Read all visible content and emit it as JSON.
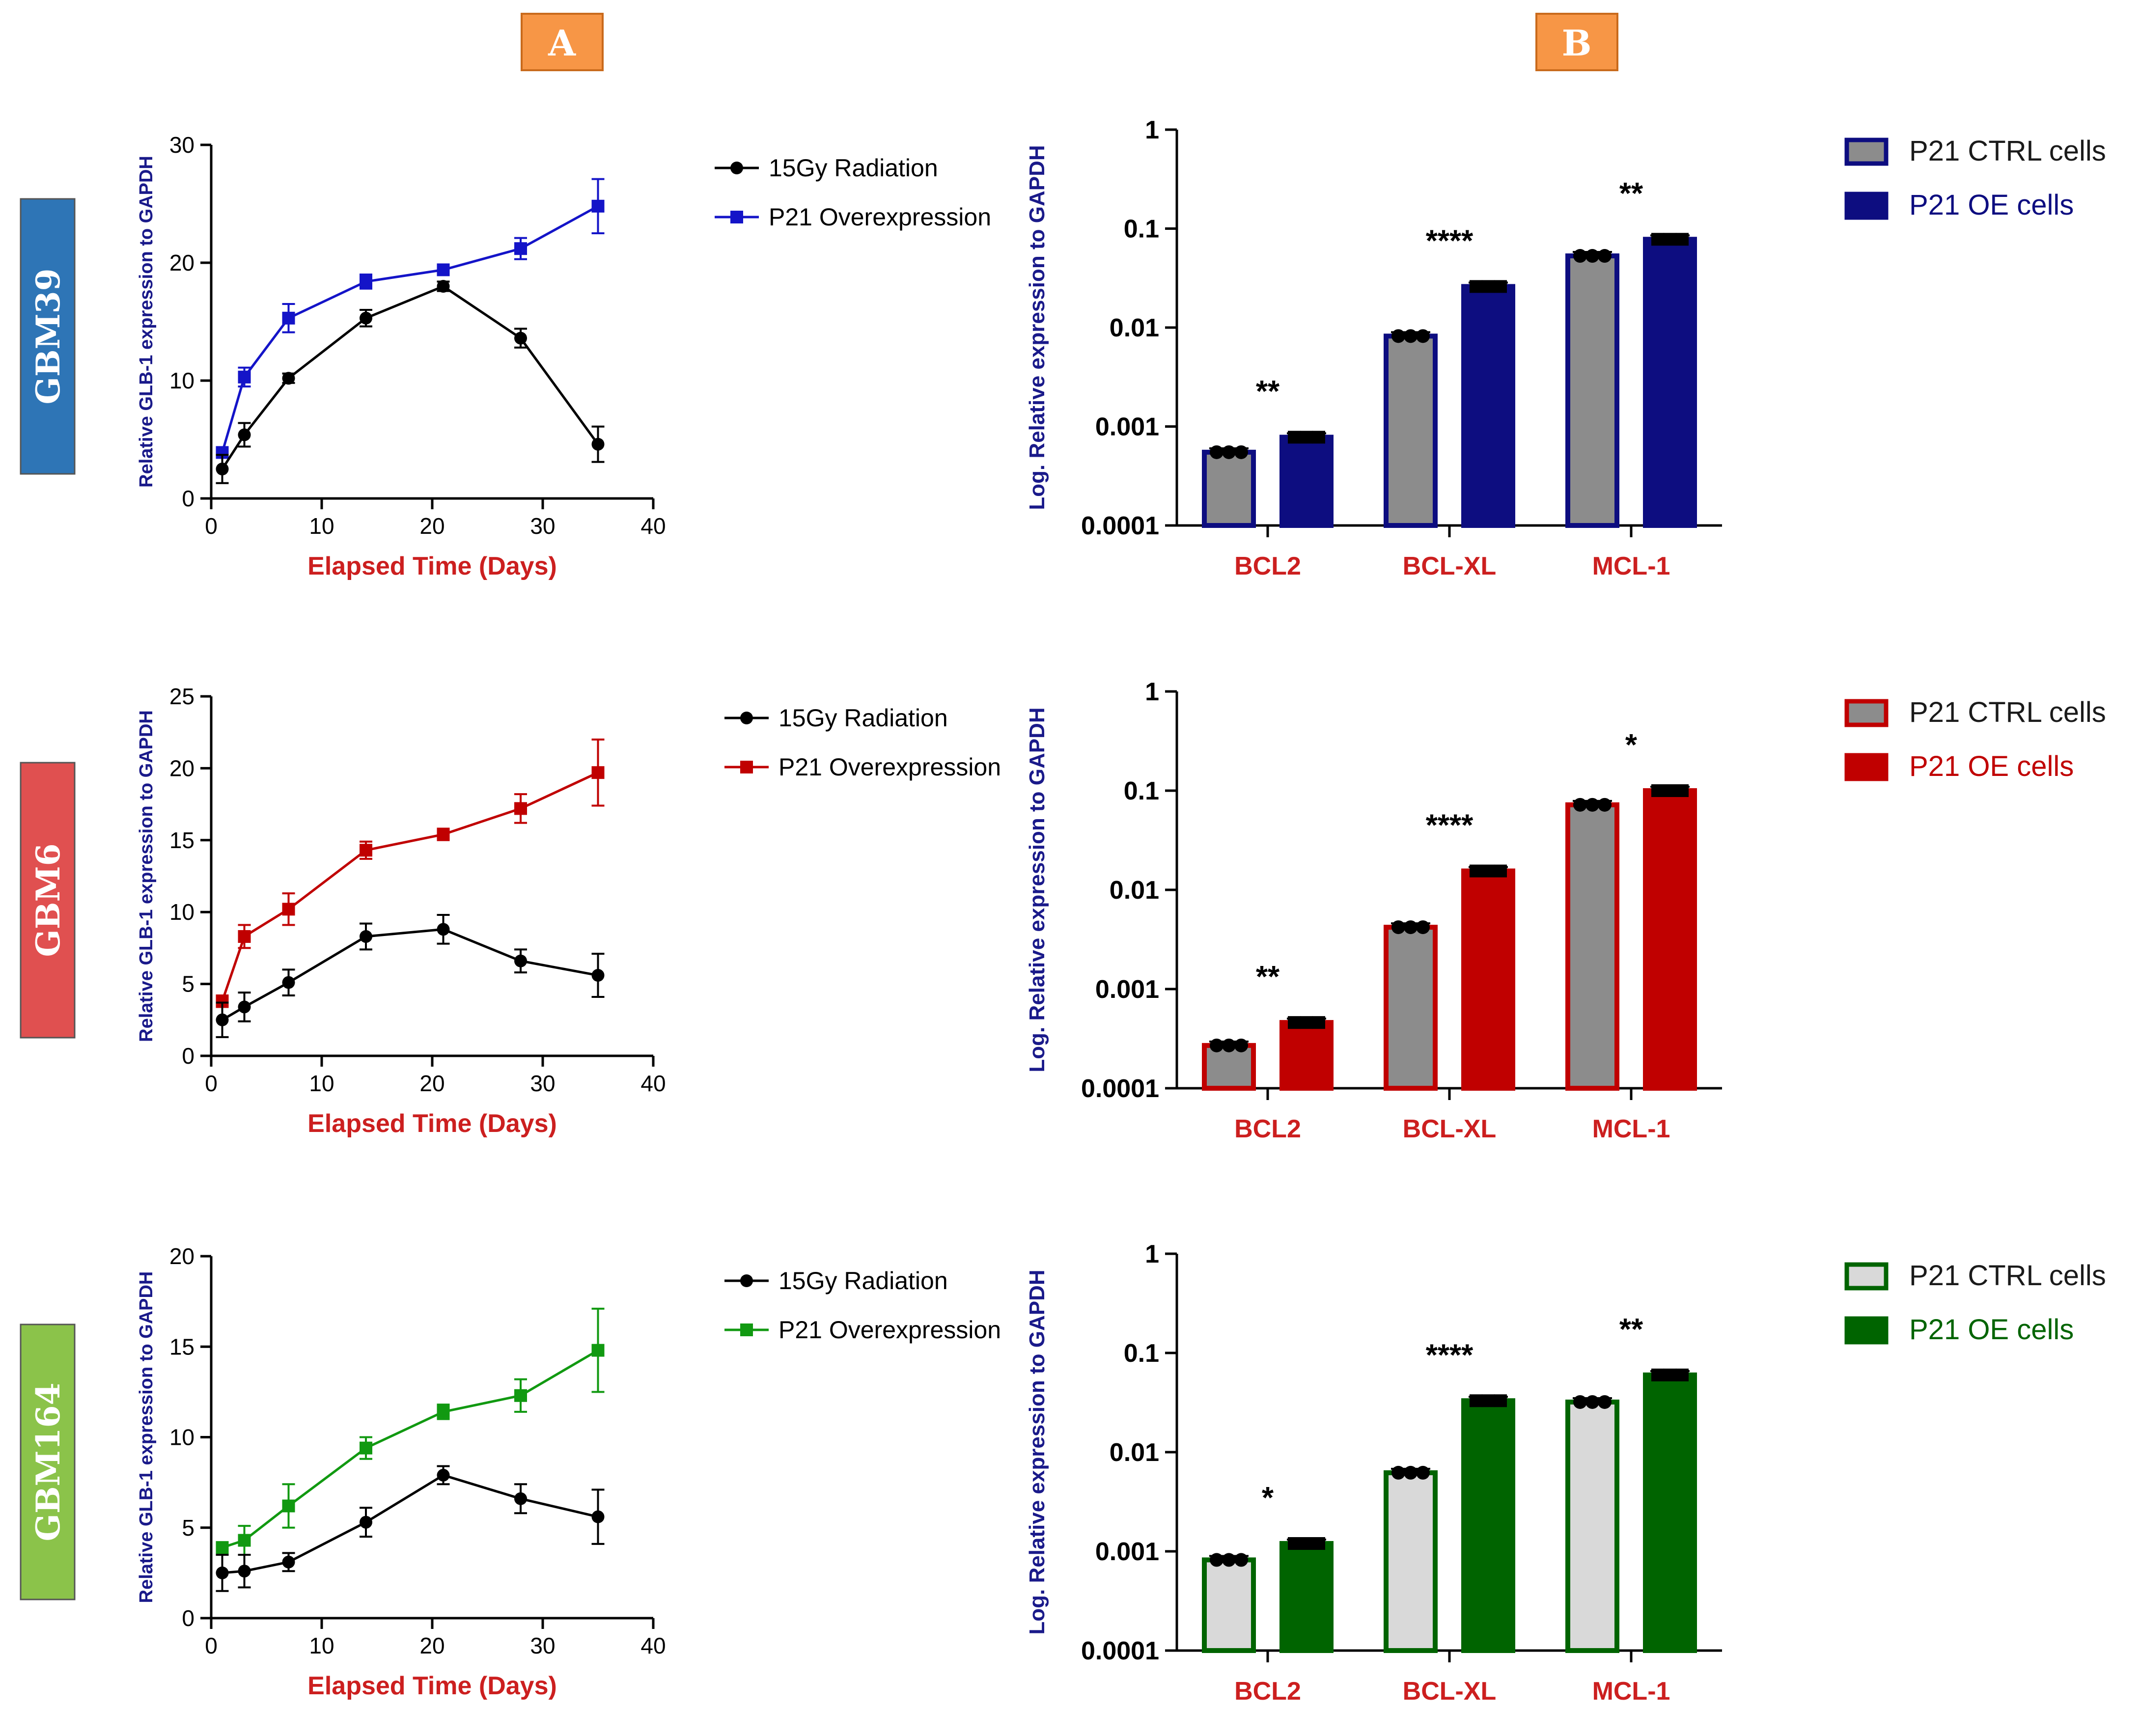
{
  "panel_labels": [
    "A",
    "B"
  ],
  "colors": {
    "GBM39": "#1414c8",
    "GBM39_dark": "#0d0d80",
    "GBM6": "#c00000",
    "GBM6_dark": "#c00000",
    "GBM164": "#119911",
    "GBM164_dark": "#006400",
    "radiation": "#000000",
    "ctrl_fill": "#8c8c8c",
    "ctrl_fill_light": "#d9d9d9",
    "axis_title_y": "#1a1a8a",
    "axis_title_x": "#cc1f1f",
    "tag_A": "#f79646",
    "row_tags": [
      "#2e75b6",
      "#e05050",
      "#8bc34a"
    ]
  },
  "row_labels": [
    "GBM39",
    "GBM6",
    "GBM164"
  ],
  "chart_data": [
    {
      "type": "line",
      "panel": "A",
      "row": "GBM39",
      "xlabel": "Elapsed Time (Days)",
      "ylabel": "Relative GLB-1 expression to GAPDH",
      "xlim": [
        0,
        40
      ],
      "ylim": [
        0,
        30
      ],
      "xticks": [
        0,
        10,
        20,
        30,
        40
      ],
      "yticks": [
        0,
        10,
        20,
        30
      ],
      "x": [
        1,
        3,
        7,
        14,
        21,
        28,
        35
      ],
      "series": [
        {
          "name": "15Gy Radiation",
          "values": [
            2.5,
            5.4,
            10.2,
            15.3,
            18.0,
            13.6,
            4.6
          ],
          "errors": [
            1.2,
            1.0,
            0.4,
            0.7,
            0.4,
            0.8,
            1.5
          ],
          "marker": "circle",
          "color_key": "radiation"
        },
        {
          "name": "P21 Overexpression",
          "values": [
            3.9,
            10.3,
            15.3,
            18.4,
            19.4,
            21.2,
            24.8
          ],
          "errors": [
            0.4,
            0.8,
            1.2,
            0.6,
            0.4,
            0.9,
            2.3
          ],
          "marker": "square",
          "color_key": "GBM39"
        }
      ]
    },
    {
      "type": "line",
      "panel": "A",
      "row": "GBM6",
      "xlabel": "Elapsed Time (Days)",
      "ylabel": "Relative GLB-1 expression to GAPDH",
      "xlim": [
        0,
        40
      ],
      "ylim": [
        0,
        25
      ],
      "xticks": [
        0,
        10,
        20,
        30,
        40
      ],
      "yticks": [
        0,
        5,
        10,
        15,
        20,
        25
      ],
      "x": [
        1,
        3,
        7,
        14,
        21,
        28,
        35
      ],
      "series": [
        {
          "name": "15Gy Radiation",
          "values": [
            2.5,
            3.4,
            5.1,
            8.3,
            8.8,
            6.6,
            5.6
          ],
          "errors": [
            1.2,
            1.0,
            0.9,
            0.9,
            1.0,
            0.8,
            1.5
          ],
          "marker": "circle",
          "color_key": "radiation"
        },
        {
          "name": "P21 Overexpression",
          "values": [
            3.8,
            8.3,
            10.2,
            14.3,
            15.4,
            17.2,
            19.7
          ],
          "errors": [
            0.4,
            0.8,
            1.1,
            0.6,
            0.4,
            1.0,
            2.3
          ],
          "marker": "square",
          "color_key": "GBM6"
        }
      ]
    },
    {
      "type": "line",
      "panel": "A",
      "row": "GBM164",
      "xlabel": "Elapsed Time (Days)",
      "ylabel": "Relative GLB-1 expression to GAPDH",
      "xlim": [
        0,
        40
      ],
      "ylim": [
        0,
        20
      ],
      "xticks": [
        0,
        10,
        20,
        30,
        40
      ],
      "yticks": [
        0,
        5,
        10,
        15,
        20
      ],
      "x": [
        1,
        3,
        7,
        14,
        21,
        28,
        35
      ],
      "series": [
        {
          "name": "15Gy Radiation",
          "values": [
            2.5,
            2.6,
            3.1,
            5.3,
            7.9,
            6.6,
            5.6
          ],
          "errors": [
            1.0,
            0.9,
            0.5,
            0.8,
            0.5,
            0.8,
            1.5
          ],
          "marker": "circle",
          "color_key": "radiation"
        },
        {
          "name": "P21 Overexpression",
          "values": [
            3.9,
            4.3,
            6.2,
            9.4,
            11.4,
            12.3,
            14.8
          ],
          "errors": [
            0.3,
            0.8,
            1.2,
            0.6,
            0.4,
            0.9,
            2.3
          ],
          "marker": "square",
          "color_key": "GBM164"
        }
      ]
    },
    {
      "type": "bar",
      "panel": "B",
      "row": "GBM39",
      "yscale": "log",
      "ylabel": "Log. Relative expression to GAPDH",
      "categories": [
        "BCL2",
        "BCL-XL",
        "MCL-1"
      ],
      "ylim": [
        0.0001,
        1
      ],
      "yticks": [
        "0.0001",
        "0.001",
        "0.01",
        "0.1",
        "1"
      ],
      "significance": [
        "**",
        "****",
        "**"
      ],
      "series": [
        {
          "name": "P21 CTRL cells",
          "values": [
            0.00055,
            0.0082,
            0.053
          ],
          "fill": "ctrl",
          "edge_key": "GBM39_dark"
        },
        {
          "name": "P21 OE cells",
          "values": [
            0.00078,
            0.026,
            0.078
          ],
          "fill": "solid",
          "edge_key": "GBM39_dark"
        }
      ]
    },
    {
      "type": "bar",
      "panel": "B",
      "row": "GBM6",
      "yscale": "log",
      "ylabel": "Log. Relative expression to GAPDH",
      "categories": [
        "BCL2",
        "BCL-XL",
        "MCL-1"
      ],
      "ylim": [
        0.0001,
        1
      ],
      "yticks": [
        "0.0001",
        "0.001",
        "0.01",
        "0.1",
        "1"
      ],
      "significance": [
        "**",
        "****",
        "*"
      ],
      "series": [
        {
          "name": "P21 CTRL cells",
          "values": [
            0.00027,
            0.0042,
            0.072
          ],
          "fill": "ctrl",
          "edge_key": "GBM6_dark"
        },
        {
          "name": "P21 OE cells",
          "values": [
            0.00046,
            0.0155,
            0.1
          ],
          "fill": "solid",
          "edge_key": "GBM6_dark"
        }
      ]
    },
    {
      "type": "bar",
      "panel": "B",
      "row": "GBM164",
      "yscale": "log",
      "ylabel": "Log. Relative expression to GAPDH",
      "categories": [
        "BCL2",
        "BCL-XL",
        "MCL-1"
      ],
      "ylim": [
        0.0001,
        1
      ],
      "yticks": [
        "0.0001",
        "0.001",
        "0.01",
        "0.1",
        "1"
      ],
      "significance": [
        "*",
        "****",
        "**"
      ],
      "series": [
        {
          "name": "P21 CTRL cells",
          "values": [
            0.00082,
            0.0062,
            0.032
          ],
          "fill": "ctrl_light",
          "edge_key": "GBM164_dark"
        },
        {
          "name": "P21 OE cells",
          "values": [
            0.0012,
            0.033,
            0.06
          ],
          "fill": "solid",
          "edge_key": "GBM164_dark"
        }
      ]
    }
  ]
}
